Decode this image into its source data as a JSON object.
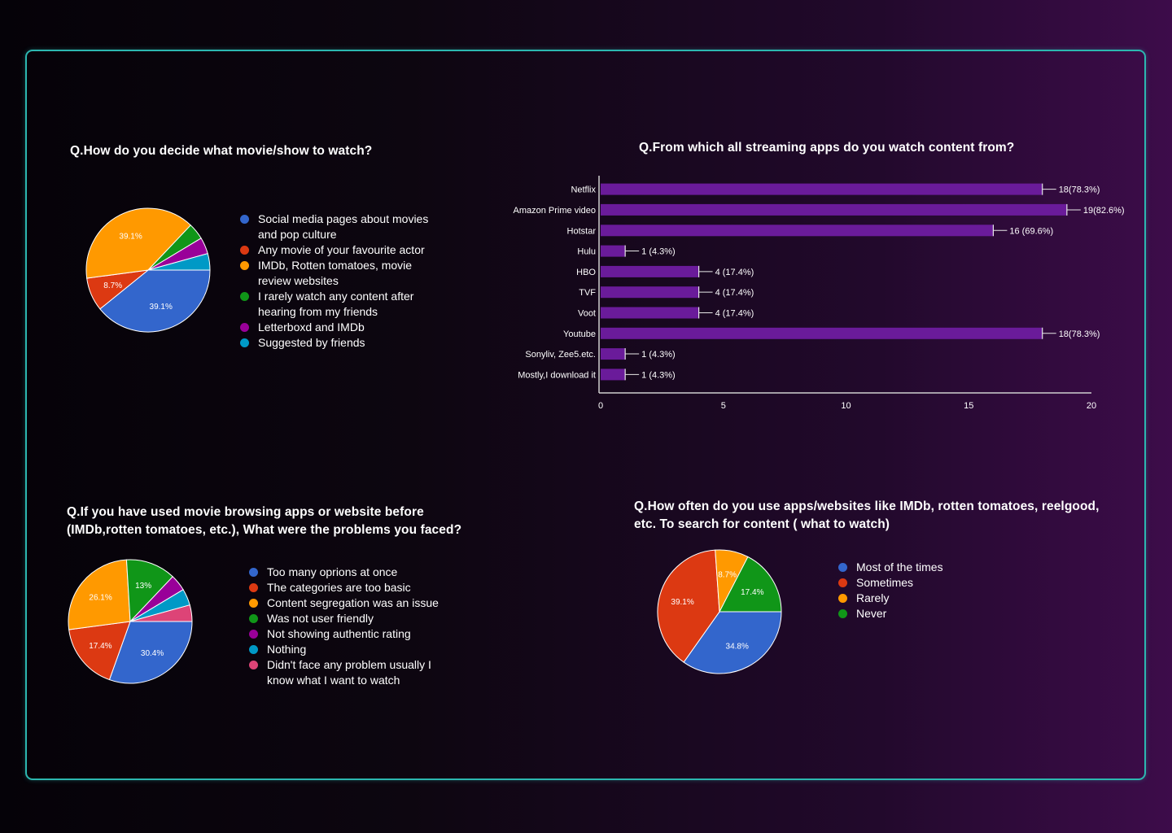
{
  "chart_data": [
    {
      "id": "decide",
      "type": "pie",
      "title": "Q.How do you decide what movie/show to watch?",
      "categories": [
        "Social media pages about movies and pop culture",
        "Any movie of your favourite actor",
        "IMDb, Rotten tomatoes, movie review websites",
        "I rarely watch any content after hearing from my friends",
        "Letterboxd and IMDb",
        "Suggested by friends"
      ],
      "values": [
        39.1,
        8.7,
        39.1,
        4.3,
        4.3,
        4.3
      ],
      "colors": [
        "#3366cc",
        "#dc3912",
        "#ff9900",
        "#109618",
        "#990099",
        "#0099c6"
      ],
      "labels": [
        "39.1%",
        "8.7%",
        "39.1%",
        "",
        "",
        ""
      ]
    },
    {
      "id": "apps",
      "type": "bar",
      "orientation": "horizontal",
      "title": "Q.From which all streaming apps do you watch content from?",
      "categories": [
        "Netflix",
        "Amazon Prime video",
        "Hotstar",
        "Hulu",
        "HBO",
        "TVF",
        "Voot",
        "Youtube",
        "Sonyliv, Zee5.etc.",
        "Mostly,I download it"
      ],
      "values": [
        18,
        19,
        16,
        1,
        4,
        4,
        4,
        18,
        1,
        1
      ],
      "data_labels": [
        "18(78.3%)",
        "19(82.6%)",
        "16 (69.6%)",
        "1 (4.3%)",
        "4 (17.4%)",
        "4 (17.4%)",
        "4 (17.4%)",
        "18(78.3%)",
        "1 (4.3%)",
        "1 (4.3%)"
      ],
      "xlim": [
        0,
        20
      ],
      "xticks": [
        "0",
        "5",
        "10",
        "15",
        "20"
      ],
      "color": "#6a1b9a"
    },
    {
      "id": "problems",
      "type": "pie",
      "title": "Q.If you have used movie browsing apps or website before (IMDb,rotten tomatoes, etc.), What were the problems you faced?",
      "categories": [
        "Too many oprions at once",
        "The categories are too basic",
        "Content segregation was an issue",
        "Was not user friendly",
        "Not showing authentic rating",
        "Nothing",
        "Didn't face any problem usually I know what I want to watch"
      ],
      "values": [
        30.4,
        17.4,
        26.1,
        13,
        4.3,
        4.3,
        4.3
      ],
      "colors": [
        "#3366cc",
        "#dc3912",
        "#ff9900",
        "#109618",
        "#990099",
        "#0099c6",
        "#dd4477"
      ],
      "labels": [
        "30.4%",
        "17.4%",
        "26.1%",
        "13%",
        "",
        "",
        ""
      ]
    },
    {
      "id": "frequency",
      "type": "pie",
      "title": "Q.How often do you use apps/websites like IMDb, rotten tomatoes, reelgood, etc. To search for content ( what to watch)",
      "categories": [
        "Most of the times",
        "Sometimes",
        "Rarely",
        "Never"
      ],
      "values": [
        34.8,
        39.1,
        8.7,
        17.4
      ],
      "colors": [
        "#3366cc",
        "#dc3912",
        "#ff9900",
        "#109618"
      ],
      "labels": [
        "34.8%",
        "39.1%",
        "8.7%",
        "17.4%"
      ]
    }
  ]
}
